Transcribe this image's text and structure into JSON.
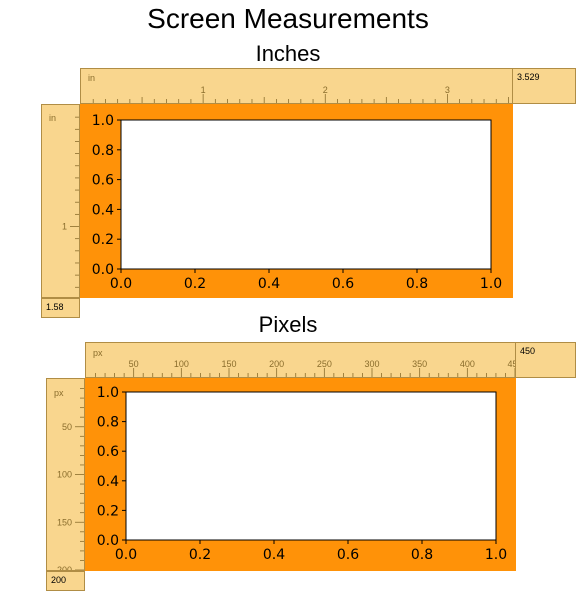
{
  "page": {
    "title": "Screen Measurements"
  },
  "sections": {
    "inches": {
      "title": "Inches",
      "unit": "in",
      "width_readout": "3.529",
      "height_readout": "1.58",
      "h_labels": [
        {
          "value": 1,
          "text": "1"
        },
        {
          "value": 2,
          "text": "2"
        },
        {
          "value": 3,
          "text": "3"
        }
      ],
      "v_labels": [
        {
          "value": 1,
          "text": "1"
        }
      ]
    },
    "pixels": {
      "title": "Pixels",
      "unit": "px",
      "width_readout": "450",
      "height_readout": "200",
      "h_labels": [
        {
          "value": 50,
          "text": "50"
        },
        {
          "value": 100,
          "text": "100"
        },
        {
          "value": 150,
          "text": "150"
        },
        {
          "value": 200,
          "text": "200"
        },
        {
          "value": 250,
          "text": "250"
        },
        {
          "value": 300,
          "text": "300"
        },
        {
          "value": 350,
          "text": "350"
        },
        {
          "value": 400,
          "text": "400"
        },
        {
          "value": 450,
          "text": "450"
        }
      ],
      "v_labels": [
        {
          "value": 50,
          "text": "50"
        },
        {
          "value": 100,
          "text": "100"
        },
        {
          "value": 150,
          "text": "150"
        },
        {
          "value": 200,
          "text": "200"
        }
      ]
    }
  },
  "chart_data": [
    {
      "type": "line",
      "series": [],
      "xlim": [
        0.0,
        1.0
      ],
      "ylim": [
        0.0,
        1.0
      ],
      "x_ticks": [
        "0.0",
        "0.2",
        "0.4",
        "0.6",
        "0.8",
        "1.0"
      ],
      "y_ticks": [
        "0.0",
        "0.2",
        "0.4",
        "0.6",
        "0.8",
        "1.0"
      ],
      "grid": false
    },
    {
      "type": "line",
      "series": [],
      "xlim": [
        0.0,
        1.0
      ],
      "ylim": [
        0.0,
        1.0
      ],
      "x_ticks": [
        "0.0",
        "0.2",
        "0.4",
        "0.6",
        "0.8",
        "1.0"
      ],
      "y_ticks": [
        "0.0",
        "0.2",
        "0.4",
        "0.6",
        "0.8",
        "1.0"
      ],
      "grid": false
    }
  ],
  "colors": {
    "figure_background": "#ff9208",
    "ruler_background": "#f9d68e",
    "ruler_ink": "#8a6d2c",
    "axes_background": "#ffffff"
  },
  "icons": []
}
